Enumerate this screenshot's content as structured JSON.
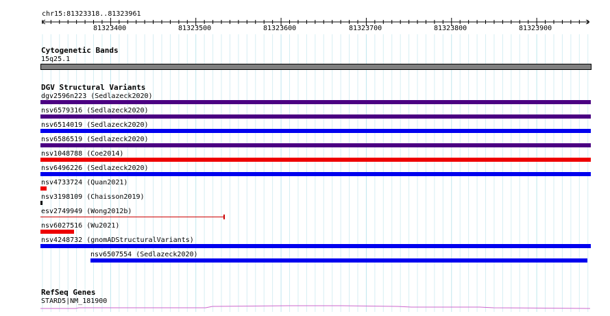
{
  "ruler": {
    "region": "chr15:81323318..81323961",
    "ticks": [
      "81323400",
      "81323500",
      "81323600",
      "81323700",
      "81323800",
      "81323900"
    ]
  },
  "tracks": {
    "cytoband": {
      "title": "Cytogenetic Bands",
      "band": "15q25.1"
    },
    "dgv": {
      "title": "DGV Structural Variants",
      "features": [
        {
          "label": "dgv2596n223 (Sedlazeck2020)",
          "color": "#4b0082"
        },
        {
          "label": "nsv6579316 (Sedlazeck2020)",
          "color": "#4b0082"
        },
        {
          "label": "nsv6514019 (Sedlazeck2020)",
          "color": "#0000ee"
        },
        {
          "label": "nsv6586519 (Sedlazeck2020)",
          "color": "#4b0082"
        },
        {
          "label": "nsv1048788 (Coe2014)",
          "color": "#ee0000"
        },
        {
          "label": "nsv6496226 (Sedlazeck2020)",
          "color": "#0000ee"
        },
        {
          "label": "nsv4733724 (Quan2021)",
          "color": "#ee0000"
        },
        {
          "label": "nsv3198109 (Chaisson2019)",
          "color": "#000000"
        },
        {
          "label": "esv2749949 (Wong2012b)",
          "color": "#cc0000"
        },
        {
          "label": "nsv6027516 (Wu2021)",
          "color": "#ee0000"
        },
        {
          "label": "nsv4248732 (gnomADStructuralVariants)",
          "color": "#0000ee"
        },
        {
          "label": "nsv6507554 (Sedlazeck2020)",
          "color": "#0000ee"
        }
      ]
    },
    "refseq": {
      "title": "RefSeq Genes",
      "gene": "STARD5|NM_181900",
      "color": "#cc66cc"
    }
  }
}
